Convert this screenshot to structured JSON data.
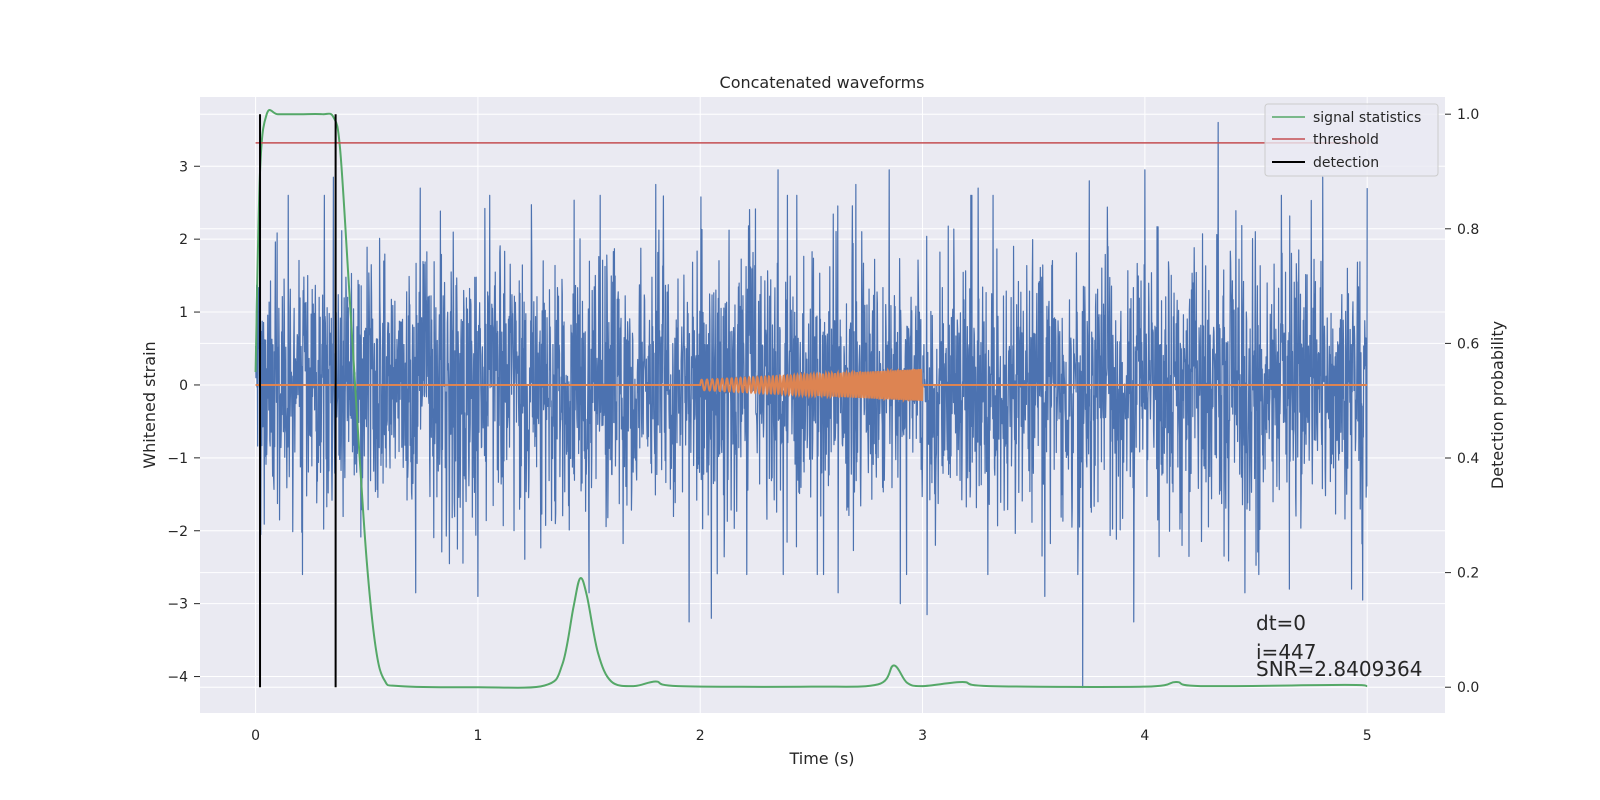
{
  "chart_data": {
    "type": "line",
    "title": "Concatenated waveforms",
    "xlabel": "Time (s)",
    "ylabel_left": "Whitened strain",
    "ylabel_right": "Detection probability",
    "xlim": [
      -0.25,
      5.35
    ],
    "ylim_left": [
      -4.5,
      3.95
    ],
    "ylim_right": [
      -0.045,
      1.03
    ],
    "x_ticks": [
      0,
      1,
      2,
      3,
      4,
      5
    ],
    "y_left_ticks": [
      3,
      2,
      1,
      0,
      -1,
      -2,
      -3,
      -4
    ],
    "y_right_ticks": [
      1.0,
      0.8,
      0.6,
      0.4,
      0.2,
      0.0
    ],
    "x_tick_labels": [
      "0",
      "1",
      "2",
      "3",
      "4",
      "5"
    ],
    "y_left_tick_labels": [
      "3",
      "2",
      "1",
      "0",
      "−1",
      "−2",
      "−3",
      "−4"
    ],
    "y_right_tick_labels": [
      "1.0",
      "0.8",
      "0.6",
      "0.4",
      "0.2",
      "0.0"
    ],
    "grid": true,
    "legend_position": "top-right",
    "legend": [
      {
        "label": "signal statistics",
        "color": "#55a868"
      },
      {
        "label": "threshold",
        "color": "#c44e52"
      },
      {
        "label": "detection",
        "color": "#000000"
      }
    ],
    "series": [
      {
        "name": "",
        "axis": "left",
        "color": "#4c72b0",
        "description": "whitened noise, x from 0 to 5 s, mostly within about ±2.5",
        "x_range": [
          0,
          5
        ],
        "peak_points": [
          [
            0.02,
            3.0
          ],
          [
            0.35,
            2.85
          ],
          [
            0.72,
            -2.85
          ],
          [
            0.74,
            2.7
          ],
          [
            1.0,
            -2.9
          ],
          [
            1.5,
            -2.85
          ],
          [
            1.55,
            2.6
          ],
          [
            1.8,
            2.75
          ],
          [
            1.95,
            -3.25
          ],
          [
            2.05,
            -3.2
          ],
          [
            2.35,
            2.95
          ],
          [
            2.62,
            -2.85
          ],
          [
            2.7,
            2.75
          ],
          [
            2.85,
            2.95
          ],
          [
            2.9,
            -3.0
          ],
          [
            3.02,
            -3.15
          ],
          [
            3.25,
            2.7
          ],
          [
            3.55,
            -2.9
          ],
          [
            3.72,
            -4.15
          ],
          [
            3.75,
            2.8
          ],
          [
            3.95,
            -3.25
          ],
          [
            4.0,
            2.95
          ],
          [
            4.33,
            3.6
          ],
          [
            4.45,
            -2.85
          ],
          [
            4.65,
            -2.8
          ],
          [
            4.8,
            2.85
          ],
          [
            4.93,
            -2.8
          ],
          [
            4.98,
            -2.95
          ],
          [
            5.0,
            2.7
          ]
        ]
      },
      {
        "name": "",
        "axis": "left",
        "color": "#dd8452",
        "description": "injected chirp signal, zero except between 2 and 3 s",
        "chirp_start": 2.0,
        "chirp_end": 3.0,
        "amplitude_start": 0.07,
        "amplitude_end": 0.22
      },
      {
        "name": "signal statistics",
        "axis": "right",
        "color": "#55a868",
        "points": [
          [
            0.0,
            0.55
          ],
          [
            0.02,
            0.9
          ],
          [
            0.05,
            1.0
          ],
          [
            0.1,
            1.0
          ],
          [
            0.2,
            1.0
          ],
          [
            0.3,
            1.0
          ],
          [
            0.35,
            0.995
          ],
          [
            0.38,
            0.94
          ],
          [
            0.42,
            0.7
          ],
          [
            0.46,
            0.45
          ],
          [
            0.5,
            0.22
          ],
          [
            0.54,
            0.07
          ],
          [
            0.58,
            0.012
          ],
          [
            0.65,
            0.002
          ],
          [
            1.0,
            0.0
          ],
          [
            1.3,
            0.003
          ],
          [
            1.38,
            0.04
          ],
          [
            1.43,
            0.14
          ],
          [
            1.46,
            0.19
          ],
          [
            1.49,
            0.16
          ],
          [
            1.54,
            0.06
          ],
          [
            1.6,
            0.01
          ],
          [
            1.7,
            0.002
          ],
          [
            1.8,
            0.01
          ],
          [
            1.9,
            0.002
          ],
          [
            2.5,
            0.001
          ],
          [
            2.8,
            0.005
          ],
          [
            2.87,
            0.038
          ],
          [
            2.93,
            0.008
          ],
          [
            3.0,
            0.002
          ],
          [
            3.18,
            0.009
          ],
          [
            3.3,
            0.002
          ],
          [
            4.0,
            0.001
          ],
          [
            4.14,
            0.009
          ],
          [
            4.25,
            0.002
          ],
          [
            4.9,
            0.004
          ],
          [
            5.0,
            0.002
          ]
        ]
      },
      {
        "name": "threshold",
        "axis": "right",
        "color": "#c44e52",
        "x": [
          0,
          5
        ],
        "value": 0.95
      },
      {
        "name": "detection",
        "axis": "right",
        "color": "#000000",
        "positions": [
          0.02,
          0.36
        ],
        "range": [
          0,
          1
        ]
      }
    ],
    "annotations": [
      "dt=0",
      "i=447",
      "SNR=2.8409364"
    ]
  },
  "colors": {
    "background": "#eaeaf2",
    "grid": "#ffffff",
    "strain": "#4c72b0",
    "chirp": "#dd8452"
  }
}
